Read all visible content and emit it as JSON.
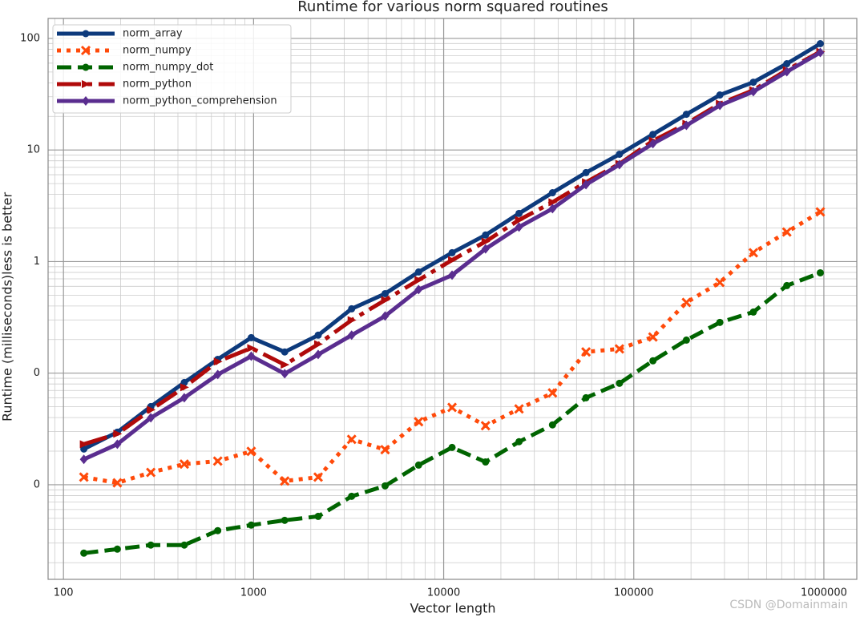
{
  "chart_data": {
    "type": "line",
    "title": "Runtime for various norm squared routines",
    "x_label": "Vector length",
    "y_label": "Runtime (milliseconds)less is better",
    "watermark": "CSDN @Domainmain",
    "x_scale": "log",
    "y_scale": "log",
    "grid": true,
    "legend": "upper left",
    "x": [
      128,
      192,
      288,
      432,
      648,
      972,
      1458,
      2187,
      3280,
      4920,
      7381,
      11071,
      16607,
      24910,
      37366,
      56049,
      84073,
      126110,
      189165,
      283747,
      425621,
      638432,
      957648
    ],
    "xlim": [
      83,
      1490000
    ],
    "xticks": [
      100,
      1000,
      10000,
      100000,
      1000000
    ],
    "ylim": [
      0.00142,
      151
    ],
    "yticks": [
      100,
      10,
      1,
      {
        "value": 0.1,
        "label": "0"
      },
      {
        "value": 0.01,
        "label": "0"
      }
    ],
    "series": [
      {
        "name": "norm_array",
        "color": "#0d3a7c",
        "linestyle": "solid",
        "marker": "circle",
        "values": [
          0.0209,
          0.0296,
          0.0502,
          0.0824,
          0.133,
          0.208,
          0.155,
          0.219,
          0.377,
          0.516,
          0.807,
          1.2,
          1.73,
          2.7,
          4.14,
          6.27,
          9.16,
          13.8,
          20.9,
          31.1,
          40.5,
          59.3,
          89.7
        ]
      },
      {
        "name": "norm_numpy",
        "color": "#ff4a0a",
        "linestyle": "dotted",
        "marker": "x",
        "values": [
          0.0117,
          0.0104,
          0.0129,
          0.0153,
          0.0163,
          0.0199,
          0.0108,
          0.0117,
          0.0255,
          0.0206,
          0.0367,
          0.0493,
          0.0338,
          0.0478,
          0.0665,
          0.155,
          0.165,
          0.211,
          0.43,
          0.651,
          1.2,
          1.84,
          2.79
        ]
      },
      {
        "name": "norm_numpy_dot",
        "color": "#006400",
        "linestyle": "dashed",
        "marker": "circle",
        "values": [
          0.00244,
          0.00265,
          0.00288,
          0.00288,
          0.00388,
          0.00435,
          0.0048,
          0.00521,
          0.00788,
          0.00977,
          0.015,
          0.0216,
          0.016,
          0.0243,
          0.0344,
          0.0602,
          0.0811,
          0.129,
          0.198,
          0.285,
          0.353,
          0.609,
          0.793
        ]
      },
      {
        "name": "norm_python",
        "color": "#b00a0a",
        "linestyle": "dashdot",
        "marker": "triangle-right",
        "values": [
          0.0231,
          0.0286,
          0.047,
          0.0746,
          0.127,
          0.168,
          0.119,
          0.182,
          0.299,
          0.452,
          0.684,
          1.03,
          1.51,
          2.36,
          3.4,
          5.14,
          7.51,
          12.1,
          17.2,
          26.0,
          34.4,
          52.0,
          76.0
        ]
      },
      {
        "name": "norm_python_comprehension",
        "color": "#5a2d8f",
        "linestyle": "solid",
        "marker": "diamond",
        "values": [
          0.0169,
          0.0231,
          0.0398,
          0.0602,
          0.0972,
          0.142,
          0.0989,
          0.147,
          0.219,
          0.325,
          0.561,
          0.755,
          1.3,
          2.04,
          2.98,
          4.89,
          7.39,
          11.4,
          16.6,
          25.1,
          33.3,
          50.3,
          74.8
        ]
      }
    ]
  }
}
